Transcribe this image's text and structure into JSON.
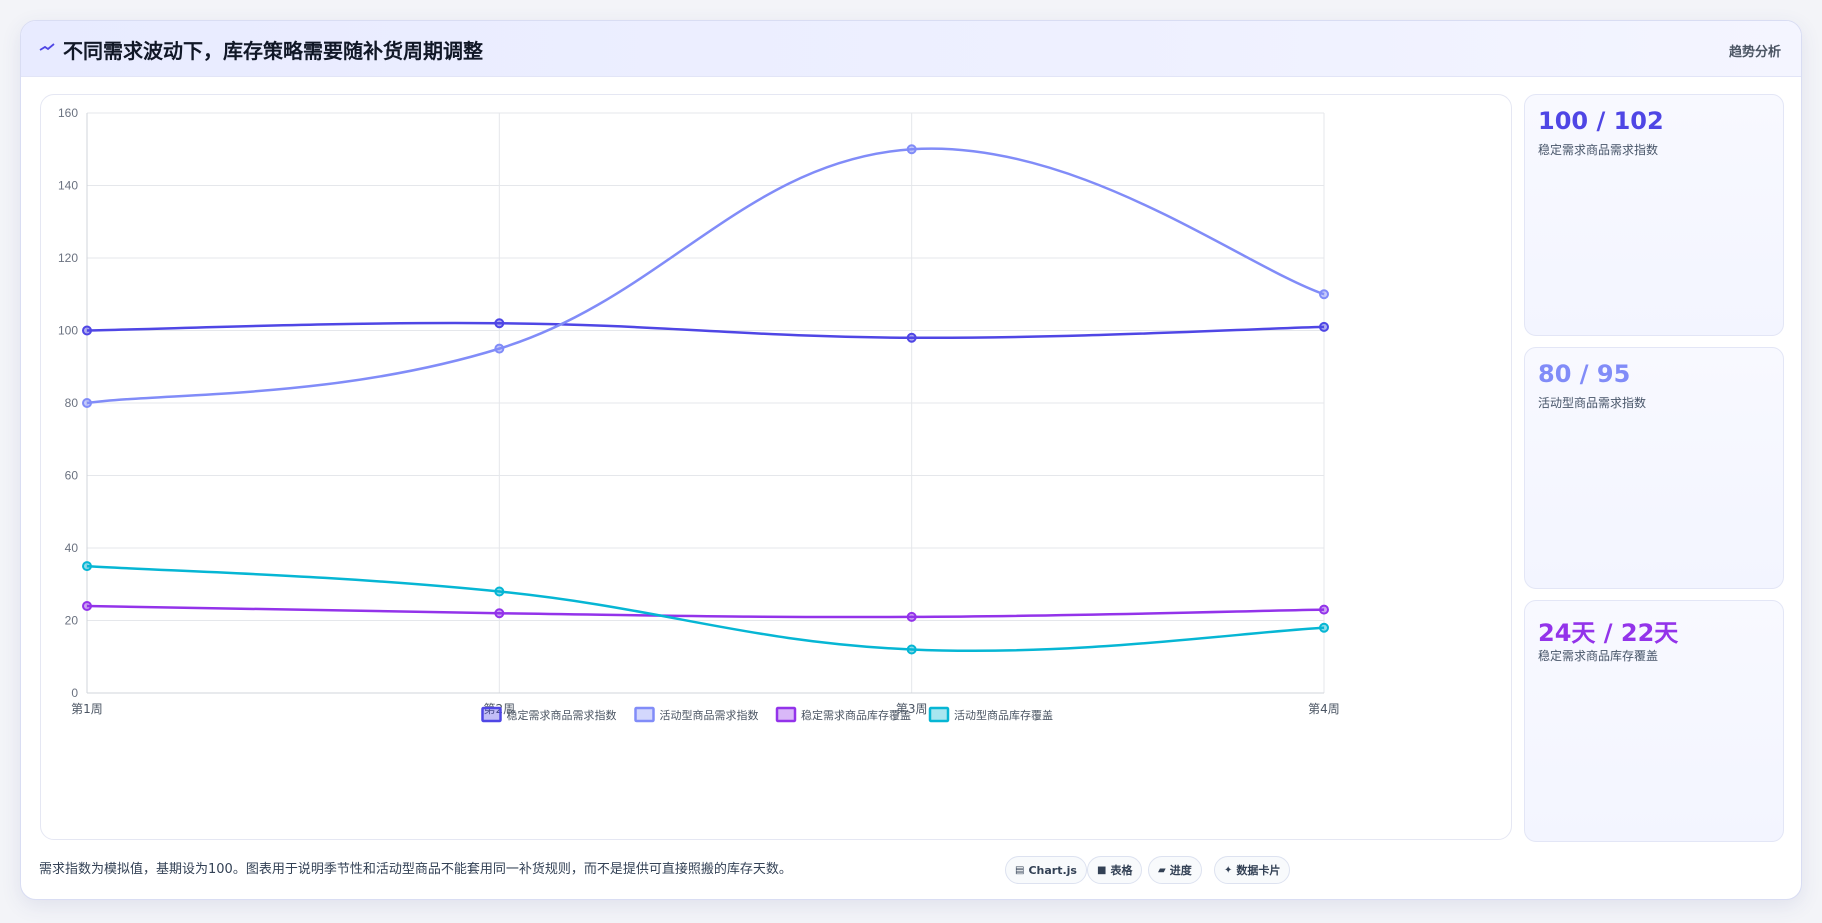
{
  "header": {
    "title": "不同需求波动下，库存策略需要随补货周期调整",
    "title_icon": "trend-line-icon",
    "tag": "趋势分析"
  },
  "chart_data": {
    "type": "line",
    "categories": [
      "第1周",
      "第2周",
      "第3周",
      "第4周"
    ],
    "ylim": [
      0,
      160
    ],
    "yticks": [
      "0",
      "20",
      "40",
      "60",
      "80",
      "100",
      "120",
      "140",
      "160"
    ],
    "grid": true,
    "legend_position": "bottom",
    "series": [
      {
        "name": "稳定需求商品需求指数",
        "values": [
          100,
          102,
          98,
          101
        ],
        "color": "#4f46e5"
      },
      {
        "name": "活动型商品需求指数",
        "values": [
          80,
          95,
          150,
          110
        ],
        "color": "#818cf8"
      },
      {
        "name": "稳定需求商品库存覆盖",
        "values": [
          24,
          22,
          21,
          23
        ],
        "color": "#9333ea"
      },
      {
        "name": "活动型商品库存覆盖",
        "values": [
          35,
          28,
          12,
          18
        ],
        "color": "#06b6d4"
      }
    ]
  },
  "stats": [
    {
      "value": "100 / 102",
      "label": "稳定需求商品需求指数",
      "color": "#4f46e5"
    },
    {
      "value": "80 / 95",
      "label": "活动型商品需求指数",
      "color": "#818cf8"
    },
    {
      "value": "24天 / 22天",
      "label": "稳定需求商品库存覆盖",
      "color": "#9333ea"
    }
  ],
  "footer": {
    "note": "需求指数为模拟值，基期设为100。图表用于说明季节性和活动型商品不能套用同一补货规则，而不是提供可直接照搬的库存天数。",
    "pills": [
      {
        "label": "Chart.js",
        "icon": "chart-icon"
      },
      {
        "label": "表格",
        "icon": "table-icon"
      },
      {
        "label": "进度",
        "icon": "progress-icon"
      },
      {
        "label": "数据卡片",
        "icon": "card-icon"
      }
    ]
  }
}
